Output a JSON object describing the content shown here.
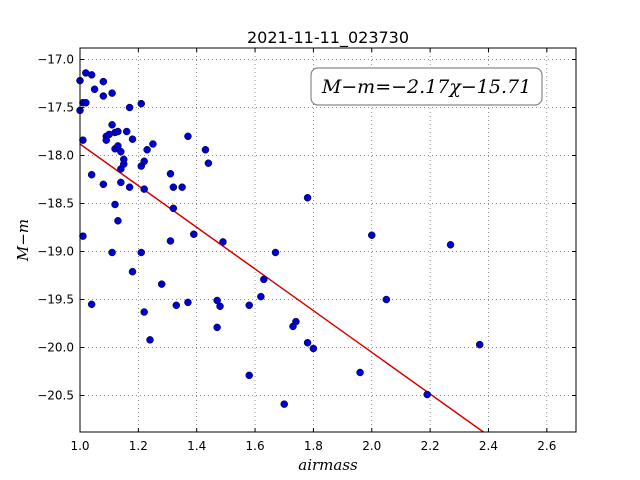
{
  "chart_data": {
    "type": "scatter",
    "title": "2021-11-11_023730",
    "xlabel": "airmass",
    "ylabel": "M−m",
    "xlim": [
      1.0,
      2.7
    ],
    "ylim": [
      -20.88,
      -16.88
    ],
    "y_inverted": true,
    "xticks": [
      "1.0",
      "1.2",
      "1.4",
      "1.6",
      "1.8",
      "2.0",
      "2.2",
      "2.4",
      "2.6"
    ],
    "yticks": [
      "−17.0",
      "−17.5",
      "−18.0",
      "−18.5",
      "−19.0",
      "−19.5",
      "−20.0",
      "−20.5"
    ],
    "grid": true,
    "annotation": "M−m=−2.17χ−15.71",
    "point_color": "#0000cc",
    "fit_color": "#dd0000",
    "fit": {
      "slope": -2.17,
      "intercept": -15.71
    },
    "points": [
      {
        "x": 1.0,
        "y": -17.22
      },
      {
        "x": 1.0,
        "y": -17.53
      },
      {
        "x": 1.01,
        "y": -17.45
      },
      {
        "x": 1.02,
        "y": -17.14
      },
      {
        "x": 1.02,
        "y": -17.45
      },
      {
        "x": 1.01,
        "y": -17.84
      },
      {
        "x": 1.01,
        "y": -18.84
      },
      {
        "x": 1.04,
        "y": -17.16
      },
      {
        "x": 1.05,
        "y": -17.31
      },
      {
        "x": 1.04,
        "y": -18.2
      },
      {
        "x": 1.04,
        "y": -19.55
      },
      {
        "x": 1.08,
        "y": -17.23
      },
      {
        "x": 1.08,
        "y": -17.38
      },
      {
        "x": 1.09,
        "y": -17.8
      },
      {
        "x": 1.09,
        "y": -17.84
      },
      {
        "x": 1.08,
        "y": -18.3
      },
      {
        "x": 1.1,
        "y": -17.78
      },
      {
        "x": 1.11,
        "y": -17.35
      },
      {
        "x": 1.11,
        "y": -17.68
      },
      {
        "x": 1.12,
        "y": -17.93
      },
      {
        "x": 1.12,
        "y": -17.76
      },
      {
        "x": 1.13,
        "y": -17.9
      },
      {
        "x": 1.13,
        "y": -17.75
      },
      {
        "x": 1.14,
        "y": -17.96
      },
      {
        "x": 1.14,
        "y": -18.14
      },
      {
        "x": 1.14,
        "y": -18.28
      },
      {
        "x": 1.15,
        "y": -18.04
      },
      {
        "x": 1.15,
        "y": -18.09
      },
      {
        "x": 1.16,
        "y": -17.75
      },
      {
        "x": 1.17,
        "y": -17.5
      },
      {
        "x": 1.17,
        "y": -18.33
      },
      {
        "x": 1.18,
        "y": -17.83
      },
      {
        "x": 1.12,
        "y": -18.51
      },
      {
        "x": 1.13,
        "y": -18.68
      },
      {
        "x": 1.11,
        "y": -19.01
      },
      {
        "x": 1.18,
        "y": -19.21
      },
      {
        "x": 1.21,
        "y": -17.46
      },
      {
        "x": 1.21,
        "y": -18.11
      },
      {
        "x": 1.22,
        "y": -18.06
      },
      {
        "x": 1.23,
        "y": -17.94
      },
      {
        "x": 1.22,
        "y": -18.35
      },
      {
        "x": 1.21,
        "y": -19.01
      },
      {
        "x": 1.22,
        "y": -19.63
      },
      {
        "x": 1.24,
        "y": -19.92
      },
      {
        "x": 1.25,
        "y": -17.88
      },
      {
        "x": 1.28,
        "y": -19.34
      },
      {
        "x": 1.31,
        "y": -18.19
      },
      {
        "x": 1.32,
        "y": -18.33
      },
      {
        "x": 1.32,
        "y": -18.55
      },
      {
        "x": 1.31,
        "y": -18.89
      },
      {
        "x": 1.33,
        "y": -19.56
      },
      {
        "x": 1.35,
        "y": -18.33
      },
      {
        "x": 1.37,
        "y": -17.8
      },
      {
        "x": 1.37,
        "y": -19.53
      },
      {
        "x": 1.39,
        "y": -18.82
      },
      {
        "x": 1.43,
        "y": -17.94
      },
      {
        "x": 1.44,
        "y": -18.08
      },
      {
        "x": 1.47,
        "y": -19.51
      },
      {
        "x": 1.48,
        "y": -19.57
      },
      {
        "x": 1.47,
        "y": -19.79
      },
      {
        "x": 1.49,
        "y": -18.9
      },
      {
        "x": 1.58,
        "y": -19.56
      },
      {
        "x": 1.58,
        "y": -20.29
      },
      {
        "x": 1.62,
        "y": -19.47
      },
      {
        "x": 1.63,
        "y": -19.29
      },
      {
        "x": 1.67,
        "y": -19.01
      },
      {
        "x": 1.7,
        "y": -20.59
      },
      {
        "x": 1.73,
        "y": -19.78
      },
      {
        "x": 1.74,
        "y": -19.73
      },
      {
        "x": 1.78,
        "y": -18.44
      },
      {
        "x": 1.78,
        "y": -19.95
      },
      {
        "x": 1.8,
        "y": -20.01
      },
      {
        "x": 1.96,
        "y": -20.26
      },
      {
        "x": 2.0,
        "y": -18.83
      },
      {
        "x": 2.05,
        "y": -19.5
      },
      {
        "x": 2.19,
        "y": -20.49
      },
      {
        "x": 2.27,
        "y": -18.93
      },
      {
        "x": 2.37,
        "y": -19.97
      }
    ]
  }
}
